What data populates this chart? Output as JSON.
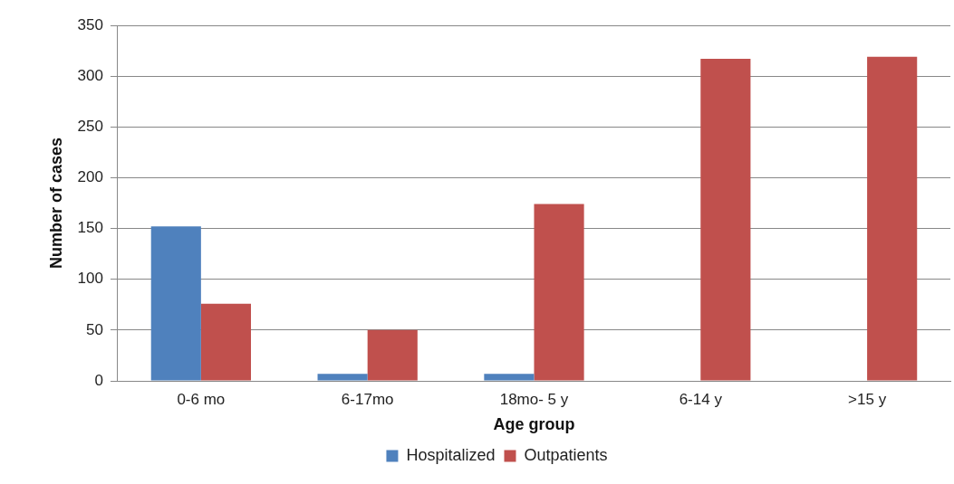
{
  "chart_data": {
    "type": "bar",
    "xlabel": "Age group",
    "ylabel": "Number of cases",
    "categories": [
      "0-6 mo",
      "6-17mo",
      "18mo- 5 y",
      "6-14 y",
      ">15 y"
    ],
    "series": [
      {
        "name": "Hospitalized",
        "color": "#4f81bd",
        "values": [
          152,
          7,
          7,
          0,
          0
        ]
      },
      {
        "name": "Outpatients",
        "color": "#c0504d",
        "values": [
          76,
          50,
          174,
          317,
          319
        ]
      }
    ],
    "ylim": [
      0,
      350
    ],
    "yticks": [
      0,
      50,
      100,
      150,
      200,
      250,
      300,
      350
    ],
    "grid": "y",
    "legend": "bottom"
  }
}
